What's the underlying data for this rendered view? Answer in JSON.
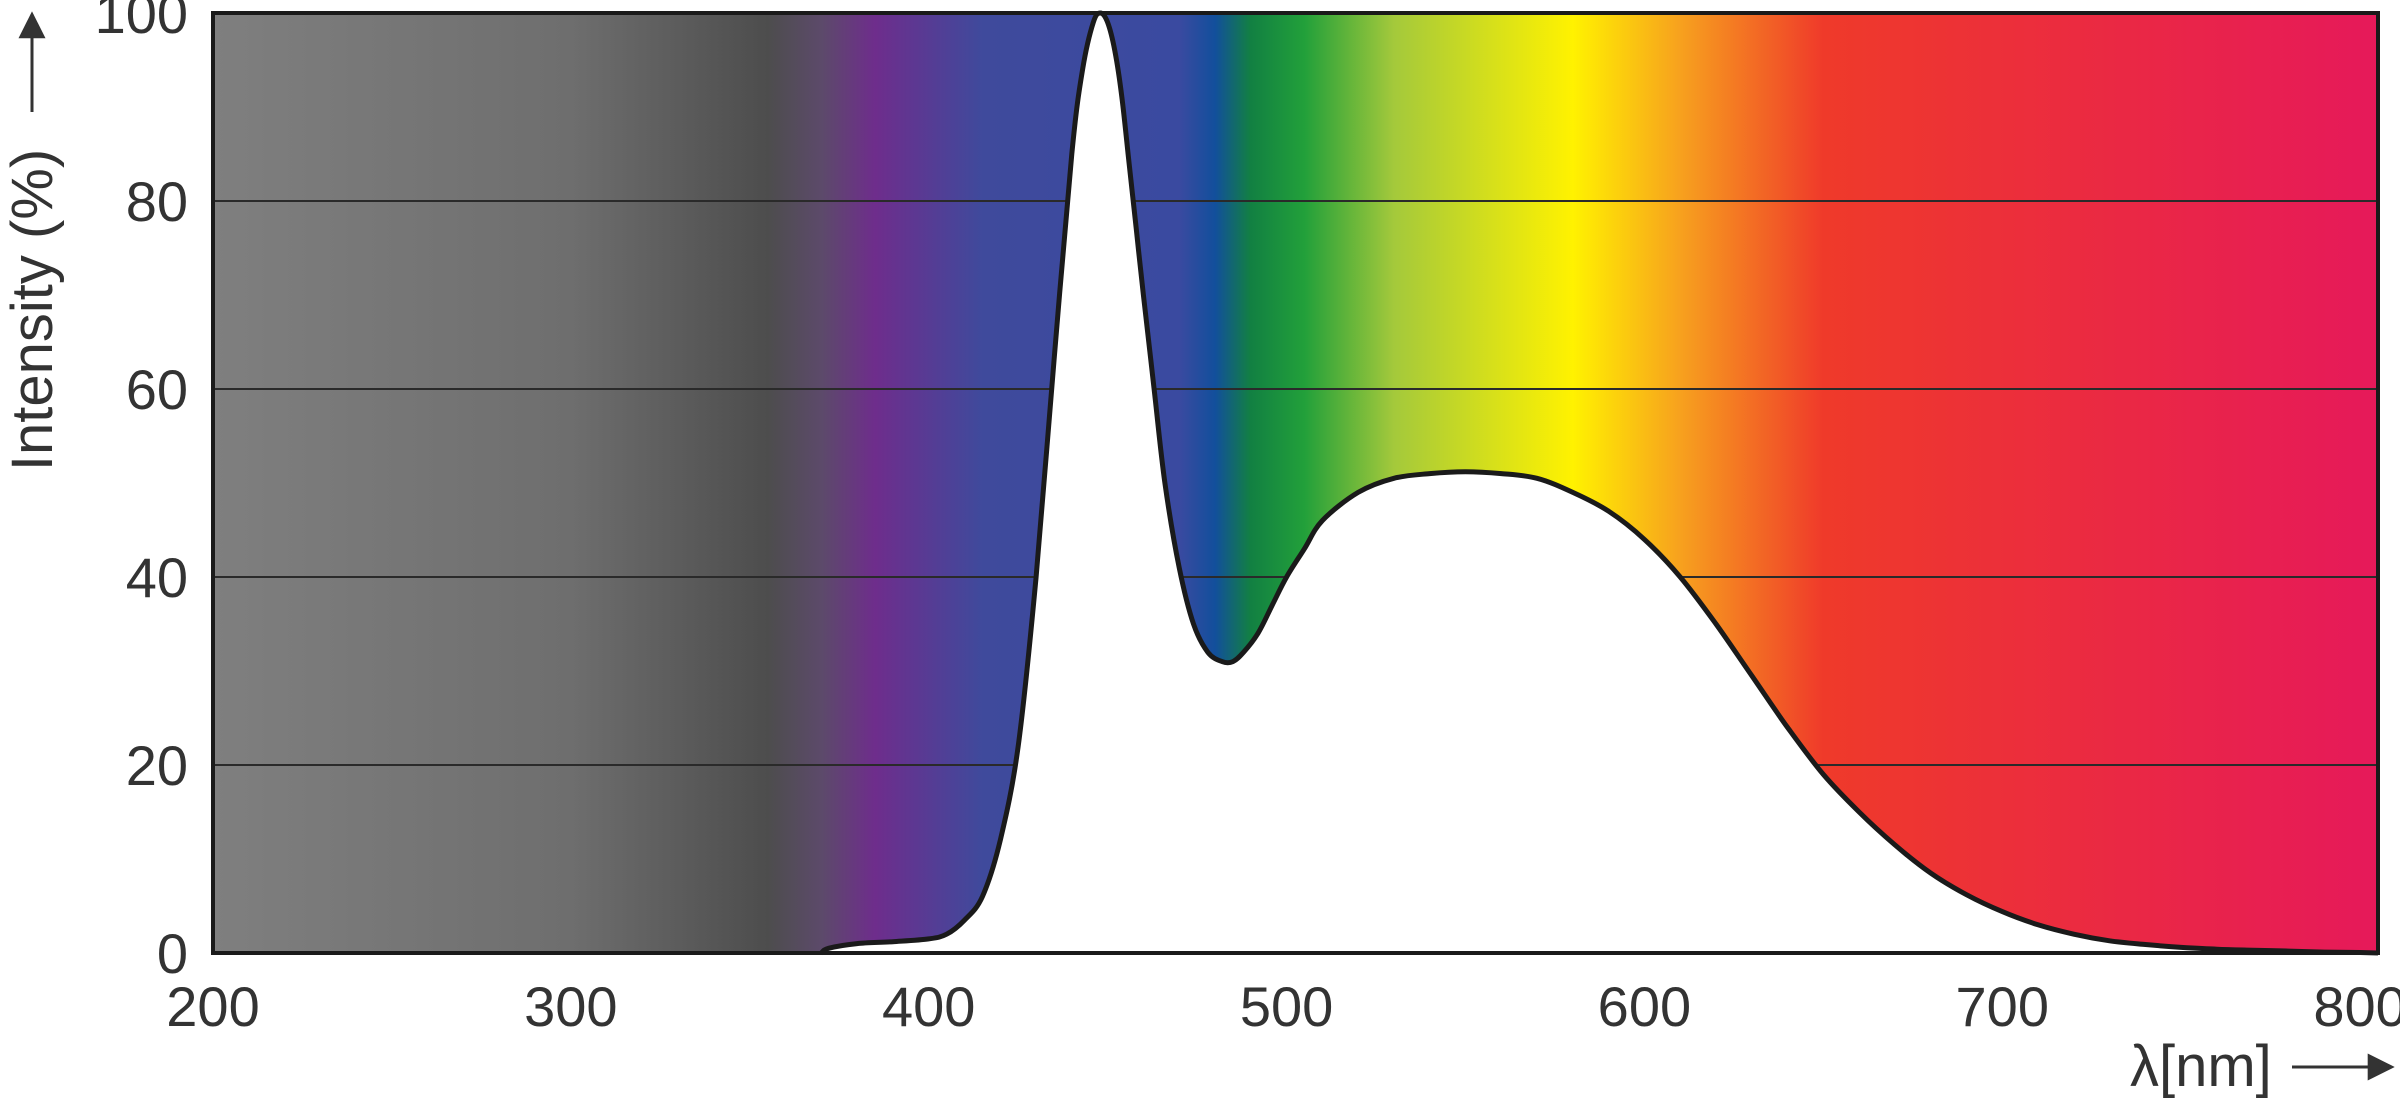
{
  "chart_data": {
    "type": "area",
    "xlabel": "λ[nm]",
    "ylabel": "Intensity (%)",
    "xlim": [
      200,
      805
    ],
    "ylim": [
      0,
      100
    ],
    "x_ticks": [
      "200",
      "300",
      "400",
      "500",
      "600",
      "700",
      "800"
    ],
    "y_ticks": [
      "0",
      "20",
      "40",
      "60",
      "80",
      "100"
    ],
    "grid": "horizontal",
    "legend": "none",
    "background": "visible spectrum color gradient (gray in UV, violet to red across 380–805 nm)",
    "series": [
      {
        "x": [
          370,
          372,
          380,
          390,
          400,
          405,
          410,
          415,
          420,
          425,
          430,
          435,
          440,
          443,
          446,
          448,
          450,
          452,
          454,
          456,
          458,
          460,
          463,
          466,
          470,
          474,
          478,
          482,
          485,
          488,
          492,
          496,
          500,
          505,
          510,
          520,
          530,
          540,
          550,
          560,
          570,
          580,
          590,
          600,
          610,
          620,
          630,
          640,
          650,
          660,
          670,
          680,
          690,
          700,
          710,
          720,
          730,
          740,
          750,
          760,
          770,
          780,
          790,
          800,
          805
        ],
        "y": [
          0,
          0.5,
          1,
          1.2,
          1.5,
          2,
          3.5,
          6,
          12,
          22,
          40,
          63,
          85,
          94,
          99,
          100,
          99,
          96,
          91,
          84,
          77,
          70,
          60,
          50,
          41,
          35,
          32,
          31,
          31,
          32,
          34,
          37,
          40,
          43,
          46,
          49,
          50.5,
          51,
          51.2,
          51,
          50.5,
          49,
          47,
          44,
          40,
          35,
          29.5,
          24,
          19,
          15,
          11.5,
          8.5,
          6.2,
          4.4,
          3,
          2,
          1.3,
          0.9,
          0.6,
          0.4,
          0.3,
          0.2,
          0.1,
          0.05,
          0
        ]
      }
    ],
    "colors": {
      "curve": "#1a1a1a",
      "fill_under_curve": "#ffffff",
      "grid": "#2a2a2a",
      "text": "#333333",
      "spectrum_stops": [
        "#7f7f7f",
        "#6e6e6e",
        "#4d4d4d",
        "#5c4a6a",
        "#6e2d8c",
        "#3f4a9c",
        "#3a4aa0",
        "#124f9c",
        "#128042",
        "#22a03a",
        "#a4c93b",
        "#fff200",
        "#f7a11e",
        "#ef3a2a",
        "#e6195a"
      ]
    }
  }
}
